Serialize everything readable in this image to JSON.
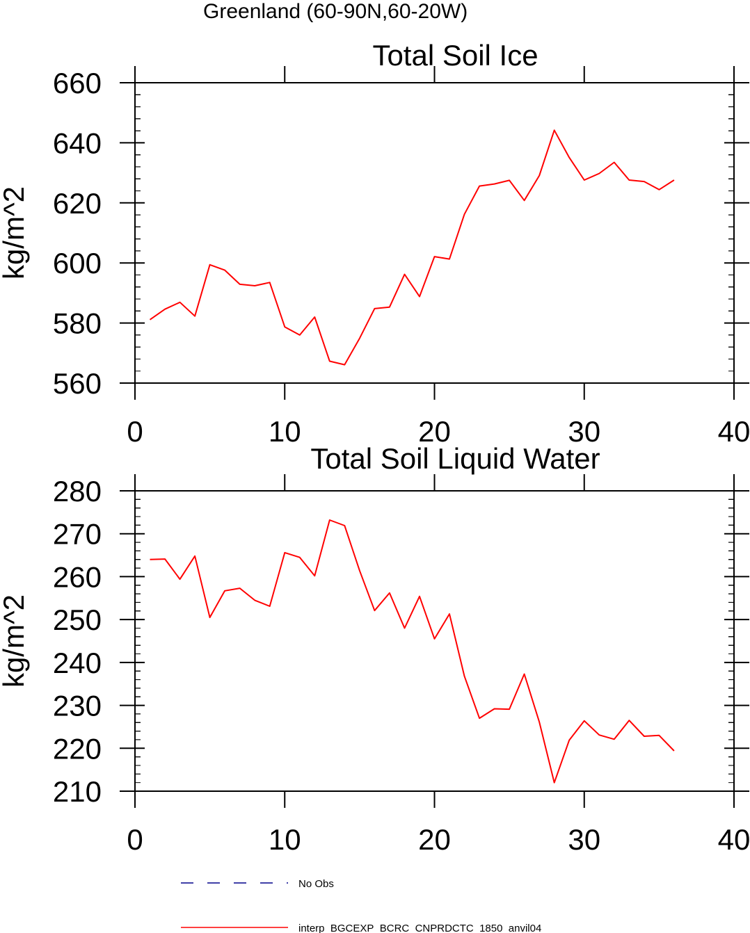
{
  "figure_title": "Greenland (60-90N,60-20W)",
  "chart_data": [
    {
      "type": "line",
      "title": "Total Soil Ice",
      "xlabel": "",
      "ylabel": "kg/m^2",
      "xlim": [
        0,
        40
      ],
      "ylim": [
        560,
        660
      ],
      "xticks": [
        0,
        10,
        20,
        30,
        40
      ],
      "yticks": [
        560,
        580,
        600,
        620,
        640,
        660
      ],
      "grid": false,
      "series": [
        {
          "name": "interp_BGCEXP_BCRC_CNPRDCTC_1850_anvil04",
          "color": "#ff0000",
          "x": [
            1,
            2,
            3,
            4,
            5,
            6,
            7,
            8,
            9,
            10,
            11,
            12,
            13,
            14,
            15,
            16,
            17,
            18,
            19,
            20,
            21,
            22,
            23,
            24,
            25,
            26,
            27,
            28,
            29,
            30,
            31,
            32,
            33,
            34,
            35,
            36
          ],
          "y": [
            581.1,
            584.6,
            586.9,
            582.3,
            599.4,
            597.6,
            592.9,
            592.4,
            593.5,
            578.7,
            576.0,
            582.0,
            567.3,
            566.1,
            574.9,
            584.8,
            585.3,
            596.2,
            588.8,
            602.1,
            601.3,
            616.2,
            625.6,
            626.3,
            627.5,
            620.8,
            629.1,
            644.2,
            635.1,
            627.6,
            629.8,
            633.5,
            627.6,
            627.1,
            624.4,
            627.6
          ]
        }
      ]
    },
    {
      "type": "line",
      "title": "Total Soil Liquid Water",
      "xlabel": "",
      "ylabel": "kg/m^2",
      "xlim": [
        0,
        40
      ],
      "ylim": [
        210,
        280
      ],
      "xticks": [
        0,
        10,
        20,
        30,
        40
      ],
      "yticks": [
        210,
        220,
        230,
        240,
        250,
        260,
        270,
        280
      ],
      "grid": false,
      "series": [
        {
          "name": "interp_BGCEXP_BCRC_CNPRDCTC_1850_anvil04",
          "color": "#ff0000",
          "x": [
            1,
            2,
            3,
            4,
            5,
            6,
            7,
            8,
            9,
            10,
            11,
            12,
            13,
            14,
            15,
            16,
            17,
            18,
            19,
            20,
            21,
            22,
            23,
            24,
            25,
            26,
            27,
            28,
            29,
            30,
            31,
            32,
            33,
            34,
            35,
            36
          ],
          "y": [
            264.0,
            264.1,
            259.4,
            264.8,
            250.5,
            256.7,
            257.3,
            254.5,
            253.1,
            265.6,
            264.5,
            260.2,
            273.2,
            271.9,
            261.4,
            252.1,
            256.2,
            248.0,
            255.4,
            245.5,
            251.3,
            236.8,
            227.0,
            229.2,
            229.1,
            237.3,
            226.1,
            212.0,
            221.9,
            226.4,
            223.1,
            222.1,
            226.5,
            222.8,
            223.0,
            219.4
          ]
        }
      ]
    }
  ],
  "legend": {
    "placement": "bottom-left",
    "entries": [
      {
        "label": "No Obs",
        "color": "#00008b",
        "style": "dashed"
      },
      {
        "label": "interp_BGCEXP_BCRC_CNPRDCTC_1850_anvil04",
        "color": "#ff0000",
        "style": "solid"
      }
    ]
  }
}
